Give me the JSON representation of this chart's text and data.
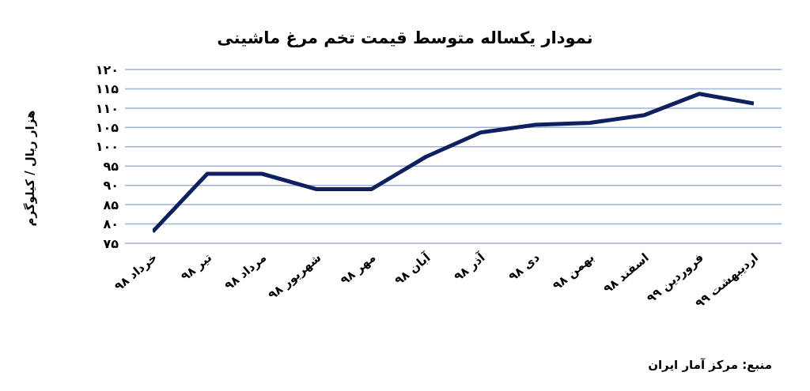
{
  "chart_data": {
    "type": "line",
    "title": "نمودار یکساله متوسط قیمت تخم مرغ ماشینی",
    "ylabel": "هزار ریال / کیلوگرم",
    "annotations": [
      "منبع: مرکز آمار ایران"
    ],
    "categories": [
      "خرداد ۹۸",
      "تیر ۹۸",
      "مرداد ۹۸",
      "شهریور ۹۸",
      "مهر ۹۸",
      "آبان ۹۸",
      "آذر ۹۸",
      "دی ۹۸",
      "بهمن ۹۸",
      "اسفند ۹۸",
      "فروردین ۹۹",
      "اردیبهشت ۹۹"
    ],
    "series": [
      {
        "color": "#0f2060",
        "values": [
          78,
          93,
          93,
          89,
          89,
          97.4,
          103.7,
          105.7,
          106.2,
          108.2,
          113.7,
          111.2
        ]
      }
    ],
    "ylim": [
      75,
      120
    ],
    "yticks": [
      {
        "value": 75,
        "label": "۷۵"
      },
      {
        "value": 80,
        "label": "۸۰"
      },
      {
        "value": 85,
        "label": "۸۵"
      },
      {
        "value": 90,
        "label": "۹۰"
      },
      {
        "value": 95,
        "label": "۹۵"
      },
      {
        "value": 100,
        "label": "۱۰۰"
      },
      {
        "value": 105,
        "label": "۱۰۵"
      },
      {
        "value": 110,
        "label": "۱۱۰"
      },
      {
        "value": 115,
        "label": "۱۱۵"
      },
      {
        "value": 120,
        "label": "۱۲۰"
      }
    ],
    "grid": "y",
    "marker": "none",
    "line_style": "solid"
  }
}
